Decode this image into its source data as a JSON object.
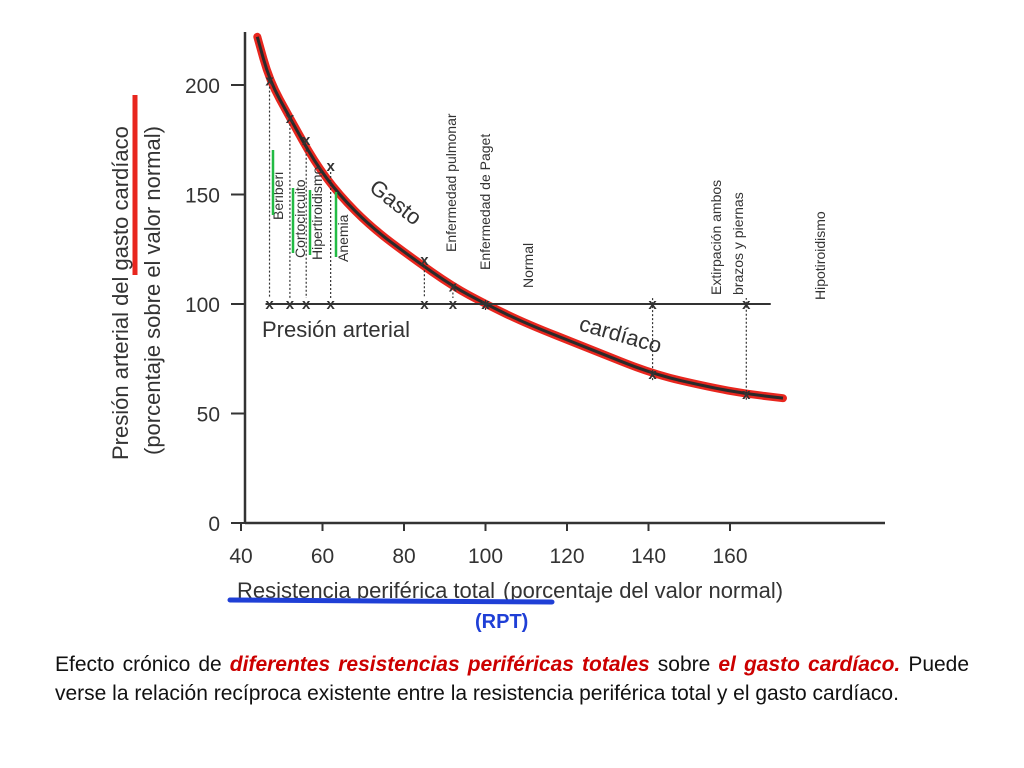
{
  "chart_data": {
    "type": "line",
    "title": "",
    "xlabel": "Resistencia periférica total",
    "xlabel_suffix": "(porcentaje del valor normal)",
    "ylabel": "Presión arterial del gasto cardíaco",
    "ylabel_suffix": "(porcentaje sobre el valor normal)",
    "xlim": [
      40,
      175
    ],
    "ylim": [
      0,
      220
    ],
    "xticks": [
      "40",
      "60",
      "80",
      "100",
      "120",
      "140",
      "160"
    ],
    "yticks": [
      "0",
      "50",
      "100",
      "150",
      "200"
    ],
    "grid": false,
    "series": [
      {
        "name": "Gasto cardíaco",
        "x": [
          44,
          47,
          52,
          58,
          64,
          72,
          82,
          92,
          100,
          110,
          125,
          141,
          155,
          164,
          173
        ],
        "y": [
          222,
          202,
          185,
          165,
          150,
          135,
          121,
          108,
          100,
          91,
          80,
          68,
          62,
          59,
          57
        ]
      },
      {
        "name": "Presión arterial",
        "x": [
          47,
          52,
          56,
          62,
          85,
          92,
          100,
          141,
          164
        ],
        "y": [
          100,
          100,
          100,
          100,
          100,
          100,
          100,
          100,
          100
        ]
      }
    ],
    "conditions": [
      {
        "label": "Beriberi",
        "x": 47,
        "y_gasto": 202
      },
      {
        "label": "Cortocircuito",
        "x": 52,
        "y_gasto": 185
      },
      {
        "label": "Hipertiroidismo",
        "x": 56,
        "y_gasto": 175
      },
      {
        "label": "Anemia",
        "x": 62,
        "y_gasto": 163
      },
      {
        "label": "Enfermedad pulmonar",
        "x": 85,
        "y_gasto": 120
      },
      {
        "label": "Enfermedad de Paget",
        "x": 92,
        "y_gasto": 108
      },
      {
        "label": "Normal",
        "x": 100,
        "y_gasto": 100
      },
      {
        "label": "Extirpación ambos brazos y piernas",
        "x": 141,
        "y_gasto": 68
      },
      {
        "label": "Hipotiroidismo",
        "x": 164,
        "y_gasto": 59
      }
    ],
    "curve_labels": [
      "Gasto",
      "cardíaco"
    ],
    "line_label": "Presión arterial",
    "annotation": "(RPT)",
    "highlight_colors": {
      "curve": "#e8261e",
      "xlabel_underline": "#1f3fd6",
      "ylabel_bar": "#e8261e",
      "condition_marks": "#22bb44",
      "annotation": "#1f3fd6"
    }
  },
  "caption": {
    "part1": "Efecto crónico de ",
    "part2": "diferentes resistencias periféricas totales",
    "part3": " sobre ",
    "part4": "el gasto cardíaco.",
    "part5": " Puede verse la relación recíproca existente entre la resistencia periférica total y el gasto cardíaco."
  }
}
